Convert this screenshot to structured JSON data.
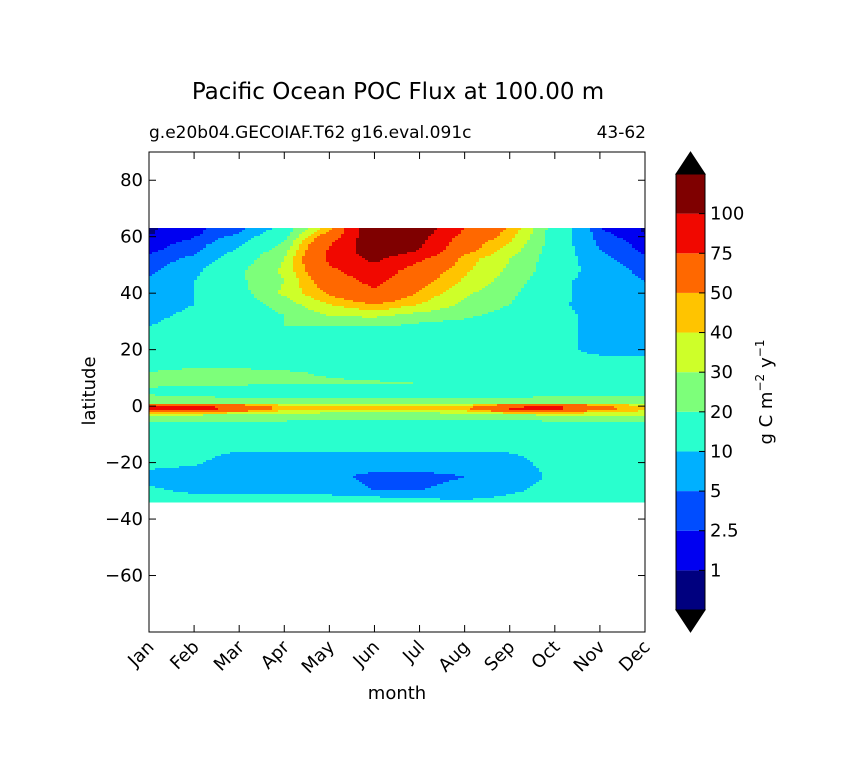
{
  "chart_data": {
    "type": "heatmap",
    "title": "Pacific Ocean POC Flux at 100.00 m",
    "subtitle_left": "g.e20b04.GECOIAF.T62 g16.eval.091c",
    "subtitle_right": "43-62",
    "xlabel": "month",
    "ylabel": "latitude",
    "x_ticks": [
      "Jan",
      "Feb",
      "Mar",
      "Apr",
      "May",
      "Jun",
      "Jul",
      "Aug",
      "Sep",
      "Oct",
      "Nov",
      "Dec"
    ],
    "xlim": [
      1,
      12
    ],
    "ylim": [
      -80,
      90
    ],
    "y_ticks": [
      80,
      60,
      40,
      20,
      0,
      -20,
      -40,
      -60
    ],
    "y_tick_labels": [
      "80",
      "60",
      "40",
      "20",
      "0",
      "−20",
      "−40",
      "−60"
    ],
    "data_lat_range": [
      -34,
      63
    ],
    "colorbar": {
      "label_parts": [
        "g C m",
        "−2",
        "y",
        "−1"
      ],
      "levels": [
        1,
        2.5,
        5,
        10,
        20,
        30,
        40,
        50,
        75,
        100
      ],
      "level_labels": [
        "1",
        "2.5",
        "5",
        "10",
        "20",
        "30",
        "40",
        "50",
        "75",
        "100"
      ],
      "band_colors": [
        "#00007f",
        "#0000f1",
        "#004dff",
        "#00b0ff",
        "#29ffce",
        "#7dff7a",
        "#ceff29",
        "#ffc400",
        "#ff6800",
        "#f10800",
        "#7f0000"
      ],
      "extend_under_color": "#000000",
      "extend_over_color": "#000000"
    },
    "field": {
      "latitudes": [
        -34,
        -30,
        -25,
        -20,
        -15,
        -10,
        -8,
        -5,
        -3,
        -1,
        0,
        1,
        3,
        5,
        8,
        12,
        16,
        20,
        24,
        28,
        32,
        36,
        40,
        44,
        48,
        52,
        55,
        58,
        61,
        63
      ],
      "rows": [
        [
          12,
          13,
          14,
          15,
          15,
          14,
          12,
          11,
          12,
          13,
          13,
          12
        ],
        [
          11,
          9,
          8,
          7,
          7,
          5,
          5,
          6,
          9,
          12,
          13,
          12
        ],
        [
          8,
          7,
          7,
          6,
          6,
          4,
          4,
          5,
          7,
          11,
          12,
          11
        ],
        [
          12,
          11,
          7,
          7,
          7,
          7,
          7,
          7,
          8,
          12,
          13,
          12
        ],
        [
          13,
          12,
          11,
          11,
          11,
          11,
          11,
          11,
          11,
          12,
          13,
          13
        ],
        [
          14,
          13,
          12,
          12,
          12,
          12,
          12,
          12,
          12,
          12,
          13,
          14
        ],
        [
          16,
          14,
          13,
          13,
          13,
          13,
          13,
          13,
          14,
          15,
          16,
          16
        ],
        [
          22,
          21,
          21,
          21,
          20,
          20,
          19,
          19,
          20,
          21,
          21,
          21
        ],
        [
          33,
          32,
          28,
          27,
          26,
          25,
          25,
          26,
          30,
          32,
          32,
          32
        ],
        [
          80,
          85,
          70,
          45,
          41,
          42,
          42,
          48,
          78,
          82,
          55,
          44
        ],
        [
          72,
          80,
          64,
          44,
          40,
          40,
          40,
          42,
          70,
          78,
          52,
          42
        ],
        [
          28,
          26,
          25,
          24,
          24,
          24,
          24,
          24,
          26,
          28,
          28,
          28
        ],
        [
          22,
          21,
          20,
          19,
          19,
          19,
          19,
          19,
          20,
          21,
          21,
          21
        ],
        [
          18,
          14,
          13,
          12,
          12,
          12,
          12,
          12,
          13,
          14,
          15,
          16
        ],
        [
          22,
          23,
          22,
          21,
          21,
          21,
          20,
          19,
          13,
          13,
          14,
          14
        ],
        [
          20,
          23,
          23,
          21,
          19,
          17,
          14,
          12,
          12,
          12,
          12,
          12
        ],
        [
          14,
          14,
          13,
          13,
          12,
          12,
          11,
          11,
          11,
          11,
          11,
          11
        ],
        [
          12,
          12,
          12,
          12,
          12,
          12,
          12,
          12,
          12,
          11,
          9,
          9
        ],
        [
          12,
          12,
          13,
          13,
          13,
          13,
          13,
          12,
          11,
          11,
          9,
          8
        ],
        [
          10,
          12,
          16,
          20,
          20,
          20,
          17,
          15,
          11,
          11,
          9,
          8
        ],
        [
          9,
          11,
          14,
          20,
          30,
          32,
          26,
          22,
          16,
          11,
          9,
          8
        ],
        [
          8,
          10,
          13,
          25,
          40,
          50,
          40,
          28,
          20,
          11,
          8,
          7
        ],
        [
          7,
          10,
          16,
          32,
          52,
          70,
          48,
          32,
          22,
          12,
          7,
          6
        ],
        [
          6,
          10,
          18,
          30,
          60,
          82,
          55,
          38,
          25,
          12,
          7,
          5
        ],
        [
          4,
          8,
          18,
          32,
          70,
          92,
          62,
          42,
          28,
          14,
          7,
          4
        ],
        [
          3,
          6,
          14,
          30,
          80,
          105,
          80,
          45,
          30,
          14,
          6,
          3
        ],
        [
          2,
          4,
          11,
          25,
          78,
          118,
          100,
          55,
          35,
          14,
          5,
          2
        ],
        [
          1.5,
          3,
          8,
          20,
          70,
          120,
          105,
          60,
          40,
          14,
          4,
          1.5
        ],
        [
          0.9,
          2,
          5,
          15,
          55,
          125,
          112,
          70,
          45,
          14,
          3,
          0.9
        ],
        [
          0.8,
          1.8,
          4,
          12,
          45,
          130,
          115,
          75,
          48,
          14,
          2.5,
          0.8
        ]
      ]
    }
  }
}
